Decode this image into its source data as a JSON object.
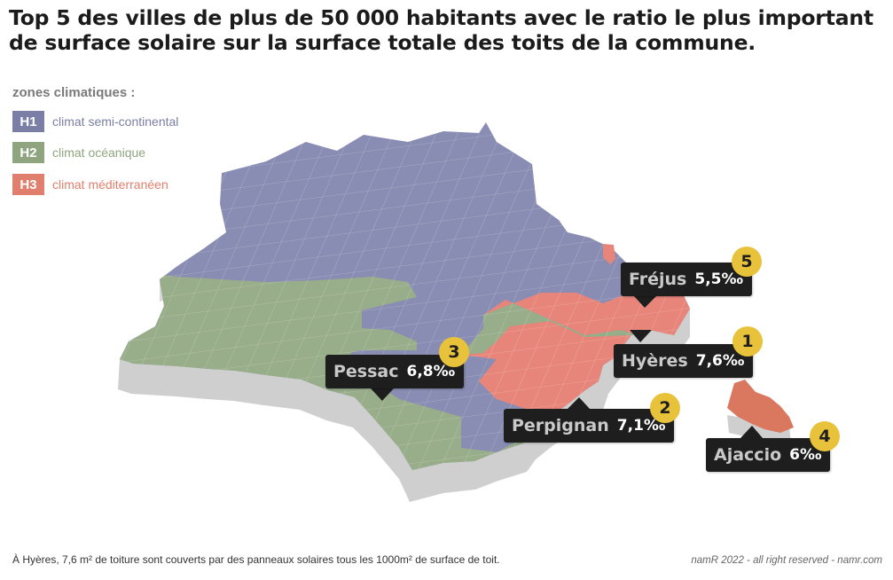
{
  "title": {
    "line1": "Top 5 des villes de plus de 50 000 habitants avec le ratio le plus important",
    "line2": "de surface solaire sur la surface totale des toits de la commune."
  },
  "legend": {
    "heading": "zones climatiques :",
    "items": [
      {
        "code": "H1",
        "label": "climat semi-continental",
        "color": "#7b7fa6"
      },
      {
        "code": "H2",
        "label": "climat océanique",
        "color": "#8fa57f"
      },
      {
        "code": "H3",
        "label": "climat méditerranéen",
        "color": "#e07f6e"
      }
    ]
  },
  "map": {
    "colors": {
      "h1": "#8a8db3",
      "h2": "#98ad89",
      "h3": "#e8857a",
      "extrusion": "#cfcfcf",
      "corsica": "#d9775f"
    }
  },
  "cities": [
    {
      "rank": "5",
      "name": "Fréjus",
      "ratio": "5,5‰"
    },
    {
      "rank": "1",
      "name": "Hyères",
      "ratio": "7,6‰"
    },
    {
      "rank": "3",
      "name": "Pessac",
      "ratio": "6,8‰"
    },
    {
      "rank": "2",
      "name": "Perpignan",
      "ratio": "7,1‰"
    },
    {
      "rank": "4",
      "name": "Ajaccio",
      "ratio": "6‰"
    }
  ],
  "footnote": "À Hyères, 7,6 m² de toiture sont couverts par des panneaux solaires tous les 1000m² de surface de toit.",
  "credit": "namR 2022 - all right reserved - namr.com",
  "theme": {
    "callout_bg": "#1e1e1e",
    "rank_bg": "#e8c23a"
  }
}
